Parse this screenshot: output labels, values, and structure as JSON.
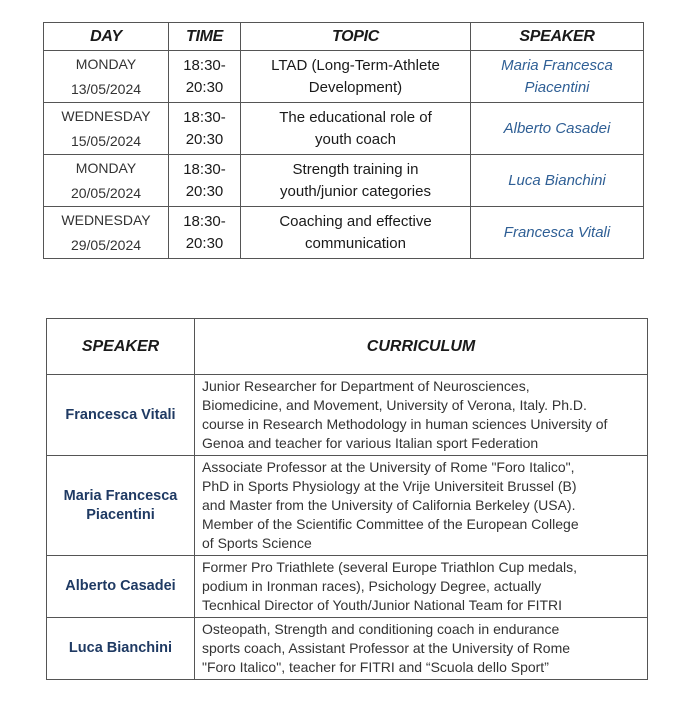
{
  "schedule": {
    "headers": {
      "day": "DAY",
      "time": "TIME",
      "topic": "TOPIC",
      "speaker": "SPEAKER"
    },
    "rows": [
      {
        "day": "MONDAY",
        "date": "13/05/2024",
        "time": [
          "18:30-",
          "20:30"
        ],
        "topic": [
          "LTAD (Long-Term-Athlete",
          "Development)"
        ],
        "speaker": [
          "Maria Francesca",
          "Piacentini"
        ]
      },
      {
        "day": "WEDNESDAY",
        "date": "15/05/2024",
        "time": [
          "18:30-",
          "20:30"
        ],
        "topic": [
          "The educational role of",
          "youth coach"
        ],
        "speaker": [
          "Alberto Casadei"
        ]
      },
      {
        "day": "MONDAY",
        "date": "20/05/2024",
        "time": [
          "18:30-",
          "20:30"
        ],
        "topic": [
          "Strength training in",
          "youth/junior categories"
        ],
        "speaker": [
          "Luca Bianchini"
        ]
      },
      {
        "day": "WEDNESDAY",
        "date": "29/05/2024",
        "time": [
          "18:30-",
          "20:30"
        ],
        "topic": [
          "Coaching and effective",
          "communication"
        ],
        "speaker": [
          "Francesca Vitali"
        ]
      }
    ]
  },
  "curriculum": {
    "headers": {
      "speaker": "SPEAKER",
      "curriculum": "CURRICULUM"
    },
    "rows": [
      {
        "name": [
          "Francesca Vitali"
        ],
        "lines": [
          "Junior Researcher for Department of Neurosciences,",
          "Biomedicine, and Movement, University of Verona, Italy. Ph.D.",
          "course in Research Methodology in human sciences University of",
          "Genoa and teacher for various Italian sport Federation"
        ]
      },
      {
        "name": [
          "Maria Francesca",
          "Piacentini"
        ],
        "lines": [
          "Associate Professor at the University of Rome \"Foro Italico\",",
          "PhD in Sports Physiology at the Vrije Universiteit Brussel (B)",
          "and Master from the University of California Berkeley (USA).",
          "Member of the Scientific Committee of the European College",
          "of Sports Science"
        ]
      },
      {
        "name": [
          "Alberto Casadei"
        ],
        "lines": [
          "Former Pro Triathlete (several Europe Triathlon Cup medals,",
          "podium in Ironman races), Psichology Degree, actually",
          "Tecnhical Director of Youth/Junior National Team for FITRI"
        ]
      },
      {
        "name": [
          "Luca Bianchini"
        ],
        "lines": [
          "Osteopath, Strength and conditioning coach in endurance",
          "sports coach, Assistant Professor at the University of Rome",
          "\"Foro Italico\", teacher for FITRI and “Scuola dello Sport”"
        ]
      }
    ]
  }
}
